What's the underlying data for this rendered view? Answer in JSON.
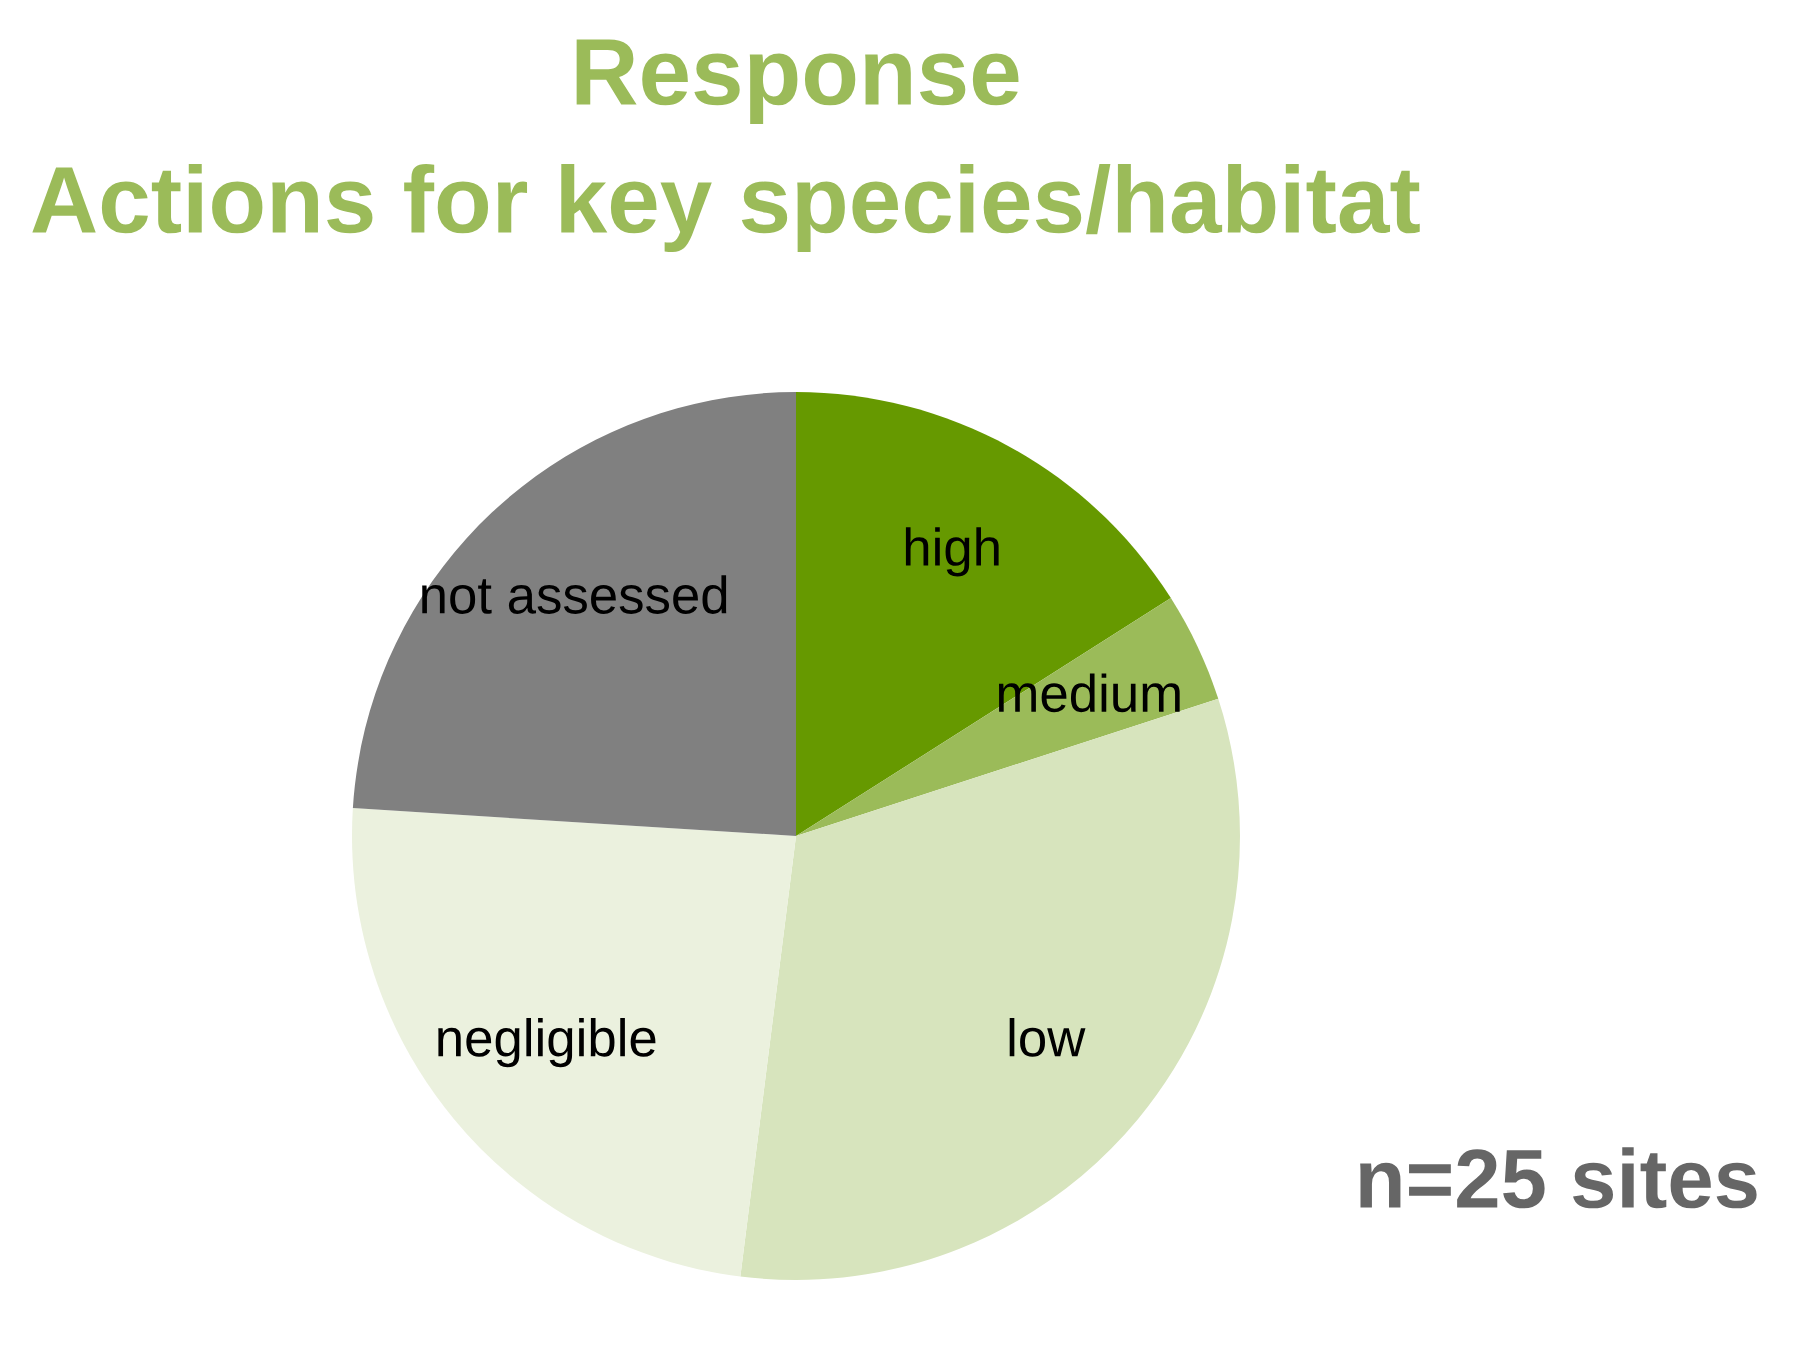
{
  "chart_data": {
    "type": "pie",
    "title": "Response",
    "subtitle": "Actions for key species/habitat",
    "categories": [
      "high",
      "medium",
      "low",
      "negligible",
      "not assessed"
    ],
    "values": [
      16,
      4,
      32,
      24,
      24
    ],
    "colors": [
      "#669900",
      "#9bbb59",
      "#d7e4bd",
      "#ebf1de",
      "#808080"
    ],
    "annotations": [
      "n=25 sites"
    ]
  }
}
